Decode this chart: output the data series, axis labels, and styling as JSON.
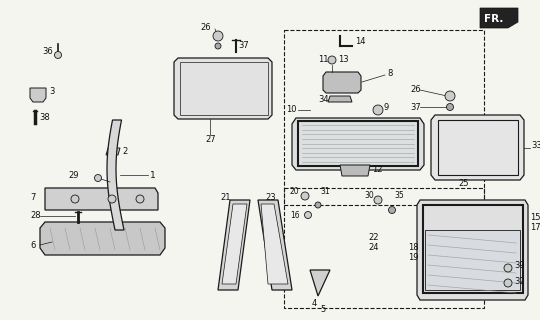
{
  "bg_color": "#f5f5f0",
  "line_color": "#1a1a1a",
  "text_color": "#111111",
  "figsize": [
    5.4,
    3.2
  ],
  "dpi": 100
}
